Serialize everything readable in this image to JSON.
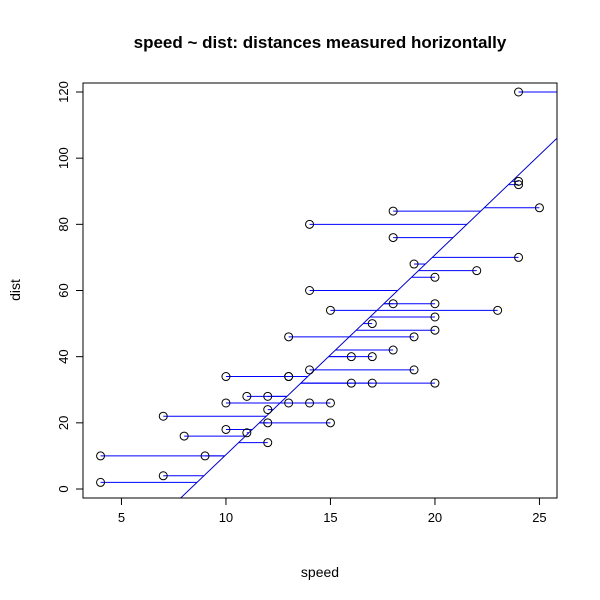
{
  "chart_data": {
    "type": "scatter",
    "title": "speed ~ dist: distances measured horizontally",
    "xlabel": "speed",
    "ylabel": "dist",
    "xlim": [
      3.16,
      25.84
    ],
    "ylim": [
      -2.72,
      122.72
    ],
    "x_ticks": [
      5,
      10,
      15,
      20,
      25
    ],
    "y_ticks": [
      0,
      20,
      40,
      60,
      80,
      100,
      120
    ],
    "grid": false,
    "point_style": "open circle",
    "colors": {
      "points": "#000000",
      "segments": "#0000ff",
      "fit_line": "#0000cd"
    },
    "points": [
      {
        "x": 4,
        "y": 2
      },
      {
        "x": 4,
        "y": 10
      },
      {
        "x": 7,
        "y": 4
      },
      {
        "x": 7,
        "y": 22
      },
      {
        "x": 8,
        "y": 16
      },
      {
        "x": 9,
        "y": 10
      },
      {
        "x": 10,
        "y": 18
      },
      {
        "x": 10,
        "y": 26
      },
      {
        "x": 10,
        "y": 34
      },
      {
        "x": 11,
        "y": 17
      },
      {
        "x": 11,
        "y": 28
      },
      {
        "x": 12,
        "y": 14
      },
      {
        "x": 12,
        "y": 20
      },
      {
        "x": 12,
        "y": 24
      },
      {
        "x": 12,
        "y": 28
      },
      {
        "x": 13,
        "y": 26
      },
      {
        "x": 13,
        "y": 34
      },
      {
        "x": 13,
        "y": 34
      },
      {
        "x": 13,
        "y": 46
      },
      {
        "x": 14,
        "y": 26
      },
      {
        "x": 14,
        "y": 36
      },
      {
        "x": 14,
        "y": 60
      },
      {
        "x": 14,
        "y": 80
      },
      {
        "x": 15,
        "y": 20
      },
      {
        "x": 15,
        "y": 26
      },
      {
        "x": 15,
        "y": 54
      },
      {
        "x": 16,
        "y": 32
      },
      {
        "x": 16,
        "y": 40
      },
      {
        "x": 17,
        "y": 32
      },
      {
        "x": 17,
        "y": 40
      },
      {
        "x": 17,
        "y": 50
      },
      {
        "x": 18,
        "y": 42
      },
      {
        "x": 18,
        "y": 56
      },
      {
        "x": 18,
        "y": 76
      },
      {
        "x": 18,
        "y": 84
      },
      {
        "x": 19,
        "y": 36
      },
      {
        "x": 19,
        "y": 46
      },
      {
        "x": 19,
        "y": 68
      },
      {
        "x": 20,
        "y": 32
      },
      {
        "x": 20,
        "y": 48
      },
      {
        "x": 20,
        "y": 52
      },
      {
        "x": 20,
        "y": 56
      },
      {
        "x": 20,
        "y": 64
      },
      {
        "x": 22,
        "y": 66
      },
      {
        "x": 23,
        "y": 54
      },
      {
        "x": 24,
        "y": 70
      },
      {
        "x": 24,
        "y": 92
      },
      {
        "x": 24,
        "y": 93
      },
      {
        "x": 24,
        "y": 120
      },
      {
        "x": 25,
        "y": 85
      }
    ],
    "fit_line": {
      "description": "speed regressed on dist",
      "intercept": 8.2839,
      "slope": 0.16557
    }
  }
}
